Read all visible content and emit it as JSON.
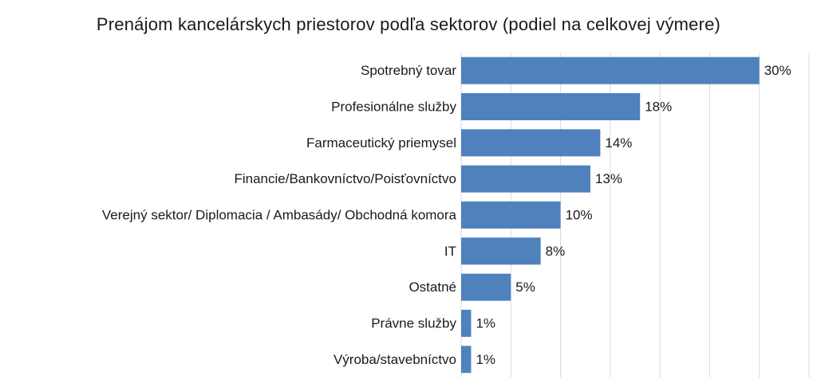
{
  "chart_data": {
    "type": "bar",
    "orientation": "horizontal",
    "title": "Prenájom kancelárskych priestorov podľa sektorov (podiel na celkovej výmere)",
    "categories": [
      "Spotrebný tovar",
      "Profesionálne služby",
      "Farmaceutický priemysel",
      "Financie/Bankovníctvo/Poisťovníctvo",
      "Verejný sektor/ Diplomacia / Ambasády/ Obchodná komora",
      "IT",
      "Ostatné",
      "Právne služby",
      "Výroba/stavebníctvo"
    ],
    "values": [
      30,
      18,
      14,
      13,
      10,
      8,
      5,
      1,
      1
    ],
    "value_labels": [
      "30%",
      "18%",
      "14%",
      "13%",
      "10%",
      "8%",
      "5%",
      "1%",
      "1%"
    ],
    "unit": "%",
    "xlim": [
      0,
      35
    ],
    "grid": true,
    "bar_color": "#4f81bd",
    "grid_color": "#d9d9d9"
  }
}
